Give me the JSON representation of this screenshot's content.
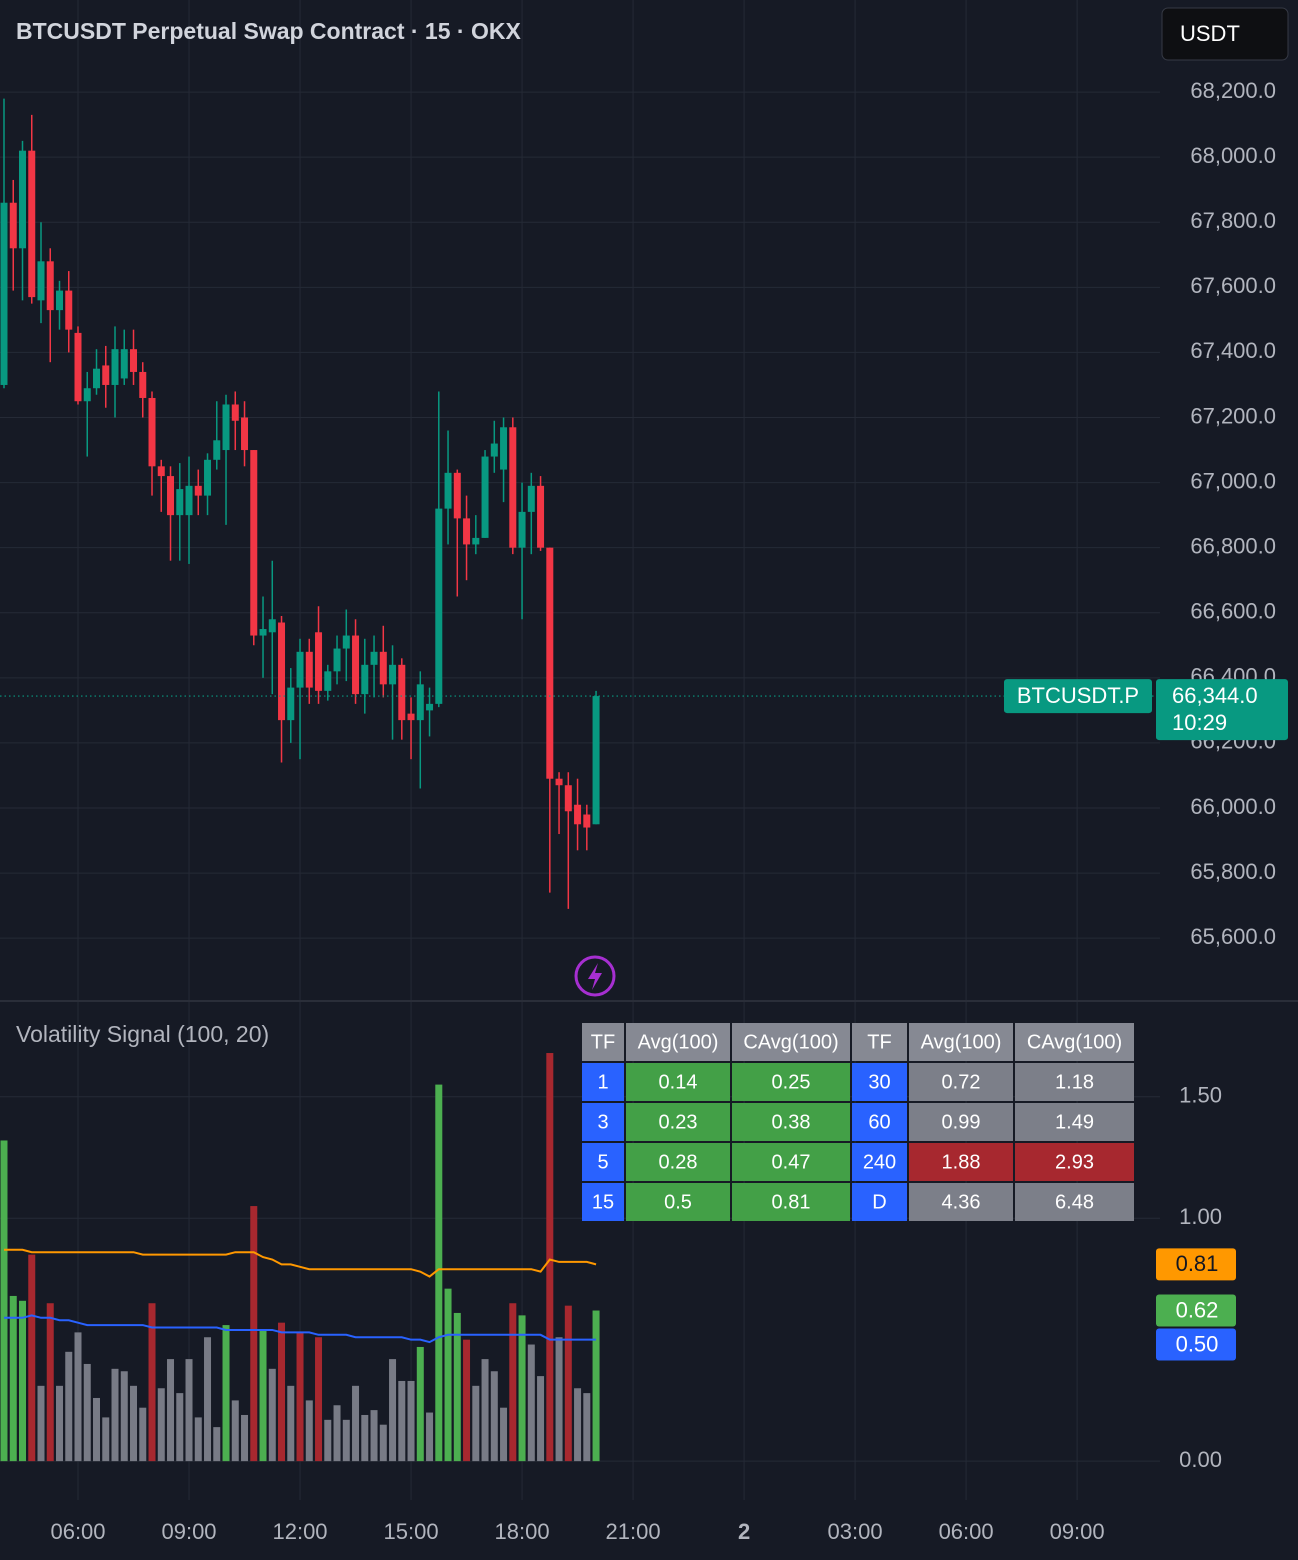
{
  "chart_data": [
    {
      "type": "candlestick",
      "title": "BTCUSDT Perpetual Swap Contract · 15 · OKX",
      "currency_button": "USDT",
      "x": [
        4,
        4.25,
        4.5,
        4.75,
        5,
        5.25,
        5.5,
        5.75,
        6,
        6.25,
        6.5,
        6.75,
        7,
        7.25,
        7.5,
        7.75,
        8,
        8.25,
        8.5,
        8.75,
        9,
        9.25,
        9.5,
        9.75,
        10,
        10.25,
        10.5,
        10.75,
        11,
        11.25,
        11.5,
        11.75,
        12,
        12.25,
        12.5,
        12.75,
        13,
        13.25,
        13.5,
        13.75,
        14,
        14.25,
        14.5,
        14.75,
        15,
        15.25,
        15.5,
        15.75,
        16,
        16.25,
        16.5,
        16.75,
        17,
        17.25,
        17.5,
        17.75,
        18,
        18.25,
        18.5,
        18.75,
        19,
        19.25,
        19.5,
        19.75,
        20
      ],
      "open": [
        67300,
        67860,
        67720,
        68020,
        67560,
        67680,
        67530,
        67590,
        67460,
        67250,
        67290,
        67360,
        67300,
        67320,
        67410,
        67340,
        67260,
        67050,
        67020,
        66900,
        66900,
        66990,
        66960,
        67070,
        67100,
        67240,
        67200,
        67100,
        66530,
        66540,
        66570,
        66270,
        66370,
        66480,
        66540,
        66360,
        66420,
        66490,
        66530,
        66350,
        66440,
        66480,
        66380,
        66440,
        66290,
        66270,
        66300,
        66320,
        66920,
        67030,
        66890,
        66810,
        66830,
        67080,
        67040,
        67170,
        66800,
        66910,
        66990,
        66800,
        66090,
        66070,
        66010,
        65980,
        65950
      ],
      "high": [
        68180,
        67930,
        68050,
        68130,
        67800,
        67720,
        67620,
        67650,
        67480,
        67340,
        67410,
        67420,
        67480,
        67470,
        67470,
        67370,
        67280,
        67070,
        67050,
        67060,
        67080,
        67040,
        67090,
        67250,
        67270,
        67280,
        67250,
        67100,
        66650,
        66760,
        66590,
        66430,
        66520,
        66520,
        66620,
        66440,
        66530,
        66610,
        66580,
        66520,
        66530,
        66560,
        66500,
        66460,
        66340,
        66420,
        66370,
        67280,
        67160,
        67040,
        66960,
        66900,
        67100,
        67190,
        67200,
        67200,
        67000,
        67030,
        67020,
        66800,
        66110,
        66110,
        66090,
        66010,
        66360
      ],
      "low": [
        67290,
        67590,
        67560,
        67550,
        67490,
        67370,
        67470,
        67400,
        67240,
        67080,
        67270,
        67230,
        67200,
        67300,
        67300,
        67200,
        66960,
        66910,
        66760,
        66760,
        66750,
        66900,
        66900,
        67040,
        66870,
        67100,
        67050,
        66500,
        66400,
        66350,
        66140,
        66200,
        66150,
        66320,
        66320,
        66330,
        66380,
        66390,
        66320,
        66290,
        66340,
        66340,
        66210,
        66210,
        66150,
        66060,
        66220,
        66310,
        66810,
        66650,
        66700,
        66780,
        66830,
        67030,
        66940,
        66780,
        66580,
        66780,
        66790,
        65740,
        65920,
        65690,
        65870,
        65870,
        65950
      ],
      "close": [
        67860,
        67720,
        68020,
        67570,
        67680,
        67530,
        67590,
        67470,
        67250,
        67290,
        67350,
        67300,
        67410,
        67410,
        67340,
        67260,
        67050,
        67020,
        66900,
        66980,
        66990,
        66960,
        67070,
        67130,
        67240,
        67190,
        67100,
        66530,
        66550,
        66580,
        66270,
        66370,
        66480,
        66370,
        66360,
        66420,
        66490,
        66530,
        66350,
        66440,
        66480,
        66380,
        66440,
        66270,
        66270,
        66380,
        66320,
        66920,
        67030,
        66890,
        66810,
        66830,
        67080,
        67120,
        67170,
        66800,
        66910,
        66990,
        66800,
        66090,
        66070,
        65990,
        65950,
        65940,
        66344
      ],
      "up_color": "#089981",
      "down_color": "#f23645",
      "last_price": 66344,
      "last_price_label": "66,344.0",
      "symbol_label": "BTCUSDT.P",
      "countdown": "10:29",
      "ylim": [
        65410,
        68483
      ],
      "yticks": [
        {
          "value": 65600,
          "label": "65,600.0"
        },
        {
          "value": 65800,
          "label": "65,800.0"
        },
        {
          "value": 66000,
          "label": "66,000.0"
        },
        {
          "value": 66200,
          "label": "66,200.0"
        },
        {
          "value": 66400,
          "label": "66,400.0"
        },
        {
          "value": 66600,
          "label": "66,600.0"
        },
        {
          "value": 66800,
          "label": "66,800.0"
        },
        {
          "value": 67000,
          "label": "67,000.0"
        },
        {
          "value": 67200,
          "label": "67,200.0"
        },
        {
          "value": 67400,
          "label": "67,400.0"
        },
        {
          "value": 67600,
          "label": "67,600.0"
        },
        {
          "value": 67800,
          "label": "67,800.0"
        },
        {
          "value": 68000,
          "label": "68,000.0"
        },
        {
          "value": 68200,
          "label": "68,200.0"
        }
      ],
      "xlim": [
        3.892,
        35.24
      ],
      "xticks": [
        {
          "value": 6,
          "label": "06:00"
        },
        {
          "value": 9,
          "label": "09:00"
        },
        {
          "value": 12,
          "label": "12:00"
        },
        {
          "value": 15,
          "label": "15:00"
        },
        {
          "value": 18,
          "label": "18:00"
        },
        {
          "value": 21,
          "label": "21:00"
        },
        {
          "value": 24,
          "label": "2"
        },
        {
          "value": 27,
          "label": "03:00"
        },
        {
          "value": 30,
          "label": "06:00"
        },
        {
          "value": 33,
          "label": "09:00"
        }
      ],
      "grid": true
    },
    {
      "type": "bar",
      "title": "Volatility Signal (100, 20)",
      "ylim": [
        -0.16,
        1.89
      ],
      "yticks": [
        {
          "value": 0,
          "label": "0.00"
        },
        {
          "value": 1,
          "label": "1.00"
        },
        {
          "value": 1.5,
          "label": "1.50"
        }
      ],
      "series": [
        {
          "type": "bar",
          "badge": "0.62",
          "color": "#4caf50",
          "values": [
            1.32,
            0.68,
            0.66,
            0.85,
            0.31,
            0.65,
            0.31,
            0.45,
            0.53,
            0.4,
            0.26,
            0.18,
            0.38,
            0.37,
            0.31,
            0.22,
            0.65,
            0.3,
            0.42,
            0.28,
            0.42,
            0.18,
            0.51,
            0.14,
            0.56,
            0.25,
            0.19,
            1.05,
            0.54,
            0.38,
            0.57,
            0.31,
            0.53,
            0.25,
            0.51,
            0.17,
            0.23,
            0.17,
            0.31,
            0.19,
            0.21,
            0.15,
            0.42,
            0.33,
            0.33,
            0.47,
            0.2,
            1.55,
            0.71,
            0.61,
            0.5,
            0.31,
            0.42,
            0.37,
            0.22,
            0.65,
            0.6,
            0.48,
            0.35,
            1.68,
            0.51,
            0.64,
            0.3,
            0.28,
            0.62
          ],
          "colors": [
            "#4caf50",
            "#4caf50",
            "#4caf50",
            "#a7282f",
            "#787b86",
            "#a7282f",
            "#787b86",
            "#787b86",
            "#787b86",
            "#787b86",
            "#787b86",
            "#787b86",
            "#787b86",
            "#787b86",
            "#787b86",
            "#787b86",
            "#a7282f",
            "#787b86",
            "#787b86",
            "#787b86",
            "#787b86",
            "#787b86",
            "#787b86",
            "#787b86",
            "#4caf50",
            "#787b86",
            "#787b86",
            "#a7282f",
            "#4caf50",
            "#787b86",
            "#a7282f",
            "#787b86",
            "#a7282f",
            "#787b86",
            "#a7282f",
            "#787b86",
            "#787b86",
            "#787b86",
            "#787b86",
            "#787b86",
            "#787b86",
            "#787b86",
            "#787b86",
            "#787b86",
            "#787b86",
            "#4caf50",
            "#787b86",
            "#4caf50",
            "#4caf50",
            "#4caf50",
            "#a7282f",
            "#787b86",
            "#787b86",
            "#787b86",
            "#787b86",
            "#a7282f",
            "#4caf50",
            "#787b86",
            "#787b86",
            "#a7282f",
            "#787b86",
            "#a7282f",
            "#787b86",
            "#787b86",
            "#4caf50"
          ]
        },
        {
          "type": "line",
          "badge": "0.81",
          "color": "#ff9800",
          "values": [
            0.87,
            0.87,
            0.87,
            0.86,
            0.86,
            0.86,
            0.86,
            0.86,
            0.86,
            0.86,
            0.86,
            0.86,
            0.86,
            0.86,
            0.86,
            0.85,
            0.85,
            0.85,
            0.85,
            0.85,
            0.85,
            0.85,
            0.85,
            0.85,
            0.85,
            0.86,
            0.86,
            0.86,
            0.84,
            0.83,
            0.81,
            0.81,
            0.8,
            0.79,
            0.79,
            0.79,
            0.79,
            0.79,
            0.79,
            0.79,
            0.79,
            0.79,
            0.79,
            0.79,
            0.79,
            0.78,
            0.76,
            0.79,
            0.79,
            0.79,
            0.79,
            0.79,
            0.79,
            0.79,
            0.79,
            0.79,
            0.79,
            0.79,
            0.78,
            0.83,
            0.82,
            0.82,
            0.82,
            0.82,
            0.81
          ]
        },
        {
          "type": "line",
          "badge": "0.50",
          "color": "#2962ff",
          "values": [
            0.59,
            0.59,
            0.59,
            0.6,
            0.59,
            0.59,
            0.58,
            0.58,
            0.57,
            0.56,
            0.56,
            0.56,
            0.56,
            0.56,
            0.56,
            0.56,
            0.55,
            0.55,
            0.55,
            0.55,
            0.55,
            0.55,
            0.55,
            0.55,
            0.54,
            0.54,
            0.54,
            0.54,
            0.54,
            0.54,
            0.53,
            0.53,
            0.53,
            0.53,
            0.52,
            0.52,
            0.52,
            0.52,
            0.51,
            0.51,
            0.51,
            0.51,
            0.51,
            0.51,
            0.5,
            0.5,
            0.49,
            0.51,
            0.52,
            0.52,
            0.52,
            0.52,
            0.52,
            0.52,
            0.52,
            0.52,
            0.52,
            0.52,
            0.52,
            0.5,
            0.5,
            0.5,
            0.5,
            0.5,
            0.5
          ]
        }
      ]
    }
  ],
  "table": {
    "header": [
      "TF",
      "Avg(100)",
      "CAvg(100)",
      "TF",
      "Avg(100)",
      "CAvg(100)"
    ],
    "header_color": "#868993",
    "rows": [
      [
        "1",
        "0.14",
        "0.25",
        "30",
        "0.72",
        "1.18"
      ],
      [
        "3",
        "0.23",
        "0.38",
        "60",
        "0.99",
        "1.49"
      ],
      [
        "5",
        "0.28",
        "0.47",
        "240",
        "1.88",
        "2.93"
      ],
      [
        "15",
        "0.5",
        "0.81",
        "D",
        "4.36",
        "6.48"
      ]
    ],
    "cell_colors": [
      [
        "#2962ff",
        "#43a047",
        "#43a047",
        "#2962ff",
        "#7c7f89",
        "#7c7f89"
      ],
      [
        "#2962ff",
        "#43a047",
        "#43a047",
        "#2962ff",
        "#7c7f89",
        "#7c7f89"
      ],
      [
        "#2962ff",
        "#43a047",
        "#43a047",
        "#2962ff",
        "#a7282f",
        "#a7282f"
      ],
      [
        "#2962ff",
        "#43a047",
        "#43a047",
        "#2962ff",
        "#7c7f89",
        "#7c7f89"
      ]
    ]
  }
}
